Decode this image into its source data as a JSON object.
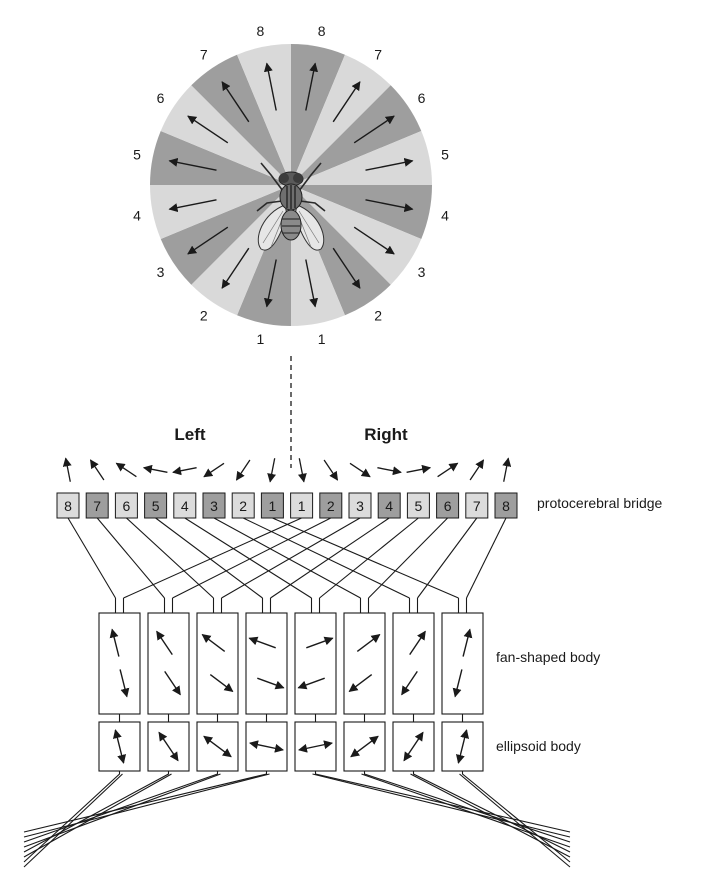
{
  "headings": {
    "left": "Left",
    "right": "Right"
  },
  "wheel": {
    "left_labels": [
      "8",
      "7",
      "6",
      "5",
      "4",
      "3",
      "2",
      "1"
    ],
    "right_labels": [
      "8",
      "7",
      "6",
      "5",
      "4",
      "3",
      "2",
      "1"
    ],
    "light_color": "#d9d9d9",
    "dark_color": "#9e9e9e"
  },
  "bridge": {
    "label": "protocerebral bridge",
    "left_cells": [
      "8",
      "7",
      "6",
      "5",
      "4",
      "3",
      "2",
      "1"
    ],
    "right_cells": [
      "1",
      "2",
      "3",
      "4",
      "5",
      "6",
      "7",
      "8"
    ],
    "light_color": "#dcdcdc",
    "dark_color": "#9e9e9e"
  },
  "fan_body": {
    "label": "fan-shaped body",
    "column_count": 8
  },
  "ellipsoid_body": {
    "label": "ellipsoid body",
    "column_count": 8
  },
  "icons": {
    "center": "fly-icon"
  }
}
